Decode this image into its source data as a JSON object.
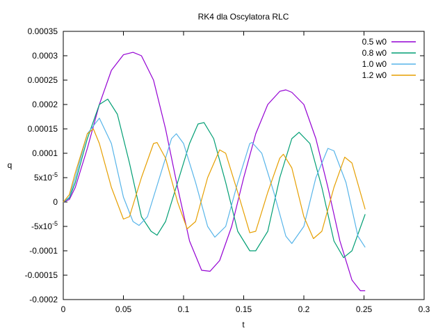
{
  "chart_data": {
    "type": "line",
    "title": "RK4 dla Oscylatora RLC",
    "xlabel": "t",
    "ylabel": "q",
    "xlim": [
      0,
      0.3
    ],
    "ylim": [
      -0.0002,
      0.00035
    ],
    "xticks": [
      0,
      0.05,
      0.1,
      0.15,
      0.2,
      0.25,
      0.3
    ],
    "xtick_labels": [
      "0",
      "0.05",
      "0.1",
      "0.15",
      "0.2",
      "0.25",
      "0.3"
    ],
    "yticks": [
      -0.0002,
      -0.00015,
      -0.0001,
      -5e-05,
      0,
      5e-05,
      0.0001,
      0.00015,
      0.0002,
      0.00025,
      0.0003,
      0.00035
    ],
    "ytick_labels": [
      "-0.0002",
      "-0.00015",
      "-0.0001",
      "-5x10",
      "0",
      "5x10",
      "0.0001",
      "0.00015",
      "0.0002",
      "0.00025",
      "0.0003",
      "0.00035"
    ],
    "ytick_exponents": [
      "",
      "",
      "",
      "-5",
      "",
      "-5",
      "",
      "",
      "",
      "",
      "",
      ""
    ],
    "grid": false,
    "legend_position": "top-right",
    "series": [
      {
        "name": "0.5 w0",
        "color": "#9400d3",
        "points": [
          [
            0,
            0
          ],
          [
            0.005,
            5e-06
          ],
          [
            0.01,
            3e-05
          ],
          [
            0.02,
            0.00011
          ],
          [
            0.03,
            0.0002
          ],
          [
            0.04,
            0.00027
          ],
          [
            0.05,
            0.000302
          ],
          [
            0.058,
            0.000307
          ],
          [
            0.065,
            0.0003
          ],
          [
            0.075,
            0.00025
          ],
          [
            0.085,
            0.00015
          ],
          [
            0.095,
            3e-05
          ],
          [
            0.105,
            -8e-05
          ],
          [
            0.115,
            -0.00014
          ],
          [
            0.122,
            -0.000142
          ],
          [
            0.13,
            -0.00012
          ],
          [
            0.14,
            -5e-05
          ],
          [
            0.15,
            5e-05
          ],
          [
            0.16,
            0.00014
          ],
          [
            0.17,
            0.0002
          ],
          [
            0.18,
            0.000227
          ],
          [
            0.185,
            0.00023
          ],
          [
            0.19,
            0.000225
          ],
          [
            0.2,
            0.0002
          ],
          [
            0.21,
            0.00013
          ],
          [
            0.22,
            3e-05
          ],
          [
            0.23,
            -8e-05
          ],
          [
            0.24,
            -0.00016
          ],
          [
            0.247,
            -0.000182
          ],
          [
            0.251,
            -0.000182
          ]
        ]
      },
      {
        "name": "0.8 w0",
        "color": "#009e73",
        "points": [
          [
            0,
            0
          ],
          [
            0.005,
            8e-06
          ],
          [
            0.01,
            4e-05
          ],
          [
            0.02,
            0.00013
          ],
          [
            0.03,
            0.0002
          ],
          [
            0.037,
            0.000211
          ],
          [
            0.045,
            0.00018
          ],
          [
            0.055,
            8e-05
          ],
          [
            0.065,
            -3e-05
          ],
          [
            0.073,
            -6e-05
          ],
          [
            0.078,
            -6.8e-05
          ],
          [
            0.085,
            -4e-05
          ],
          [
            0.095,
            4e-05
          ],
          [
            0.105,
            0.00012
          ],
          [
            0.112,
            0.00016
          ],
          [
            0.117,
            0.000163
          ],
          [
            0.125,
            0.00013
          ],
          [
            0.135,
            4e-05
          ],
          [
            0.145,
            -6e-05
          ],
          [
            0.155,
            -0.0001
          ],
          [
            0.16,
            -0.0001
          ],
          [
            0.17,
            -6e-05
          ],
          [
            0.18,
            5e-05
          ],
          [
            0.19,
            0.00013
          ],
          [
            0.196,
            0.000143
          ],
          [
            0.205,
            0.00012
          ],
          [
            0.215,
            3e-05
          ],
          [
            0.225,
            -8e-05
          ],
          [
            0.233,
            -0.000114
          ],
          [
            0.24,
            -0.0001
          ],
          [
            0.251,
            -2.5e-05
          ]
        ]
      },
      {
        "name": "1.0 w0",
        "color": "#56b4e9",
        "points": [
          [
            0,
            0
          ],
          [
            0.005,
            1e-05
          ],
          [
            0.01,
            5e-05
          ],
          [
            0.02,
            0.00014
          ],
          [
            0.03,
            0.000172
          ],
          [
            0.04,
            0.00012
          ],
          [
            0.05,
            1e-05
          ],
          [
            0.058,
            -4e-05
          ],
          [
            0.063,
            -4.8e-05
          ],
          [
            0.07,
            -3e-05
          ],
          [
            0.08,
            5e-05
          ],
          [
            0.09,
            0.00013
          ],
          [
            0.094,
            0.00014
          ],
          [
            0.1,
            0.00012
          ],
          [
            0.11,
            4e-05
          ],
          [
            0.12,
            -5e-05
          ],
          [
            0.126,
            -7.2e-05
          ],
          [
            0.135,
            -5e-05
          ],
          [
            0.145,
            4e-05
          ],
          [
            0.155,
            0.00012
          ],
          [
            0.157,
            0.000122
          ],
          [
            0.165,
            0.0001
          ],
          [
            0.175,
            2e-05
          ],
          [
            0.185,
            -7e-05
          ],
          [
            0.19,
            -8.5e-05
          ],
          [
            0.2,
            -5e-05
          ],
          [
            0.21,
            5e-05
          ],
          [
            0.22,
            0.00011
          ],
          [
            0.225,
            0.000105
          ],
          [
            0.235,
            4e-05
          ],
          [
            0.245,
            -7e-05
          ],
          [
            0.251,
            -9.3e-05
          ]
        ]
      },
      {
        "name": "1.2 w0",
        "color": "#e69f00",
        "points": [
          [
            0,
            0
          ],
          [
            0.005,
            1.5e-05
          ],
          [
            0.01,
            6e-05
          ],
          [
            0.02,
            0.00014
          ],
          [
            0.025,
            0.00015
          ],
          [
            0.03,
            0.00012
          ],
          [
            0.04,
            3e-05
          ],
          [
            0.05,
            -3.5e-05
          ],
          [
            0.055,
            -3e-05
          ],
          [
            0.065,
            5e-05
          ],
          [
            0.075,
            0.00012
          ],
          [
            0.078,
            0.000122
          ],
          [
            0.085,
            9e-05
          ],
          [
            0.095,
            0
          ],
          [
            0.103,
            -5.5e-05
          ],
          [
            0.11,
            -4e-05
          ],
          [
            0.12,
            5e-05
          ],
          [
            0.13,
            0.000107
          ],
          [
            0.135,
            0.0001
          ],
          [
            0.145,
            2e-05
          ],
          [
            0.155,
            -6.3e-05
          ],
          [
            0.16,
            -6e-05
          ],
          [
            0.17,
            2e-05
          ],
          [
            0.18,
            9e-05
          ],
          [
            0.183,
            9.8e-05
          ],
          [
            0.19,
            7e-05
          ],
          [
            0.2,
            -3e-05
          ],
          [
            0.208,
            -7.5e-05
          ],
          [
            0.215,
            -6e-05
          ],
          [
            0.225,
            3e-05
          ],
          [
            0.234,
            9.2e-05
          ],
          [
            0.24,
            8e-05
          ],
          [
            0.251,
            -1.5e-05
          ]
        ]
      }
    ]
  }
}
